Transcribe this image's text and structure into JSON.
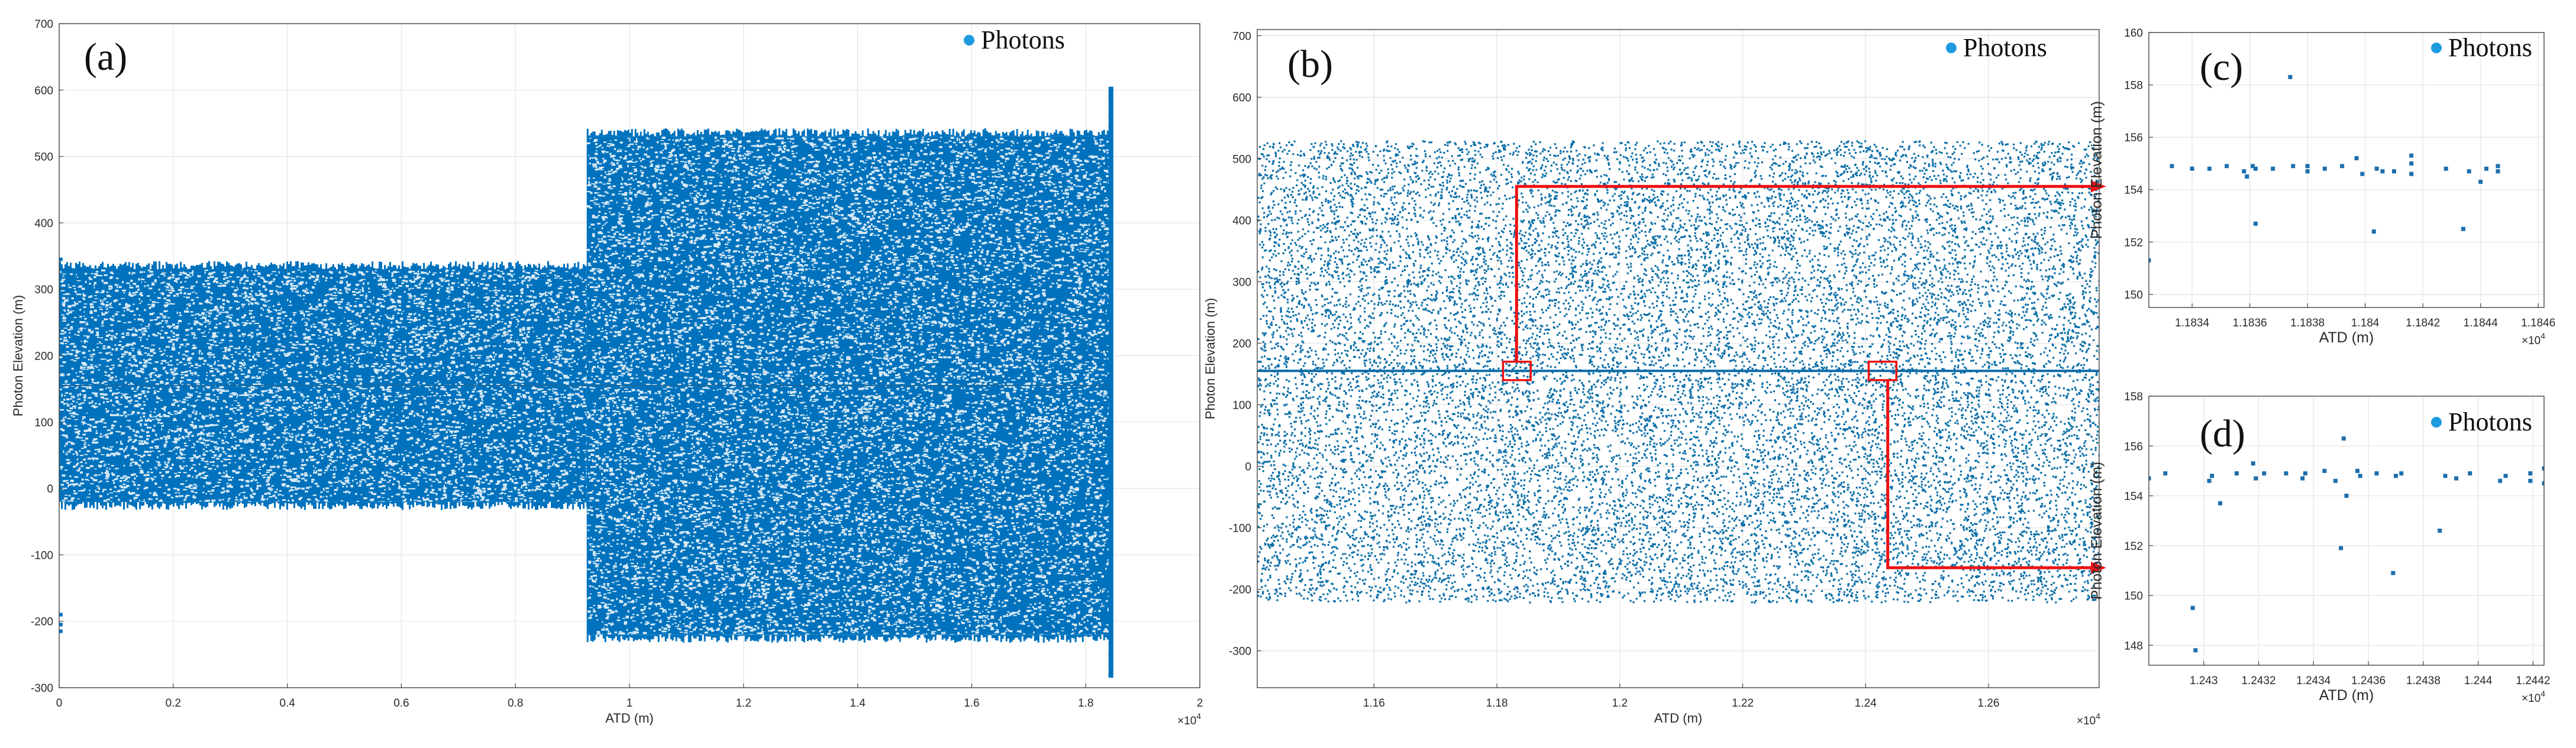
{
  "chart_data": [
    {
      "id": "a",
      "type": "scatter",
      "panel_label": "(a)",
      "legend": "Photons",
      "legend_position": "top-right",
      "xlabel": "ATD (m)",
      "ylabel": "Photon Elevation (m)",
      "x_exponent": "×10",
      "x_exponent_power": "4",
      "xlim": [
        0,
        2
      ],
      "ylim": [
        -300,
        700
      ],
      "grid": true,
      "xticks": [
        0,
        0.2,
        0.4,
        0.6,
        0.8,
        1,
        1.2,
        1.4,
        1.6,
        1.8,
        2
      ],
      "xtick_labels": [
        "0",
        "0.2",
        "0.4",
        "0.6",
        "0.8",
        "1",
        "1.2",
        "1.4",
        "1.6",
        "1.8",
        "2"
      ],
      "yticks": [
        -300,
        -200,
        -100,
        0,
        100,
        200,
        300,
        400,
        500,
        600,
        700
      ],
      "ytick_labels": [
        "-300",
        "-200",
        "-100",
        "0",
        "100",
        "200",
        "300",
        "400",
        "500",
        "600",
        "700"
      ],
      "point_clouds": [
        {
          "x_range": [
            0,
            0.925
          ],
          "y_range": [
            -20,
            330
          ],
          "density": "very high"
        },
        {
          "x_range": [
            0.925,
            1.845
          ],
          "y_range": [
            -220,
            530
          ],
          "density": "very high"
        }
      ],
      "extra_points": [
        {
          "x": 1.843,
          "y": 590
        },
        {
          "x": 1.843,
          "y": 560
        },
        {
          "x": 1.843,
          "y": 545
        },
        {
          "x": 1.843,
          "y": -250
        },
        {
          "x": 1.843,
          "y": -265
        },
        {
          "x": 1.843,
          "y": -280
        },
        {
          "x": 0.003,
          "y": -190
        },
        {
          "x": 0.003,
          "y": -205
        },
        {
          "x": 0.003,
          "y": -215
        },
        {
          "x": 0.003,
          "y": 345
        },
        {
          "x": 0.003,
          "y": 335
        }
      ],
      "signal_line_y": 155
    },
    {
      "id": "b",
      "type": "scatter",
      "panel_label": "(b)",
      "legend": "Photons",
      "legend_position": "top-right",
      "xlabel": "ATD (m)",
      "ylabel": "Photon Elevation (m)",
      "x_exponent": "×10",
      "x_exponent_power": "4",
      "xlim": [
        1.141,
        1.278
      ],
      "ylim": [
        -360,
        710
      ],
      "grid": true,
      "xticks": [
        1.16,
        1.18,
        1.2,
        1.22,
        1.24,
        1.26
      ],
      "xtick_labels": [
        "1.16",
        "1.18",
        "1.2",
        "1.22",
        "1.24",
        "1.26"
      ],
      "yticks": [
        -300,
        -200,
        -100,
        0,
        100,
        200,
        300,
        400,
        500,
        600,
        700
      ],
      "ytick_labels": [
        "-300",
        "-200",
        "-100",
        "0",
        "100",
        "200",
        "300",
        "400",
        "500",
        "600",
        "700"
      ],
      "point_clouds": [
        {
          "x_range": [
            1.141,
            1.278
          ],
          "y_range": [
            -220,
            530
          ],
          "density": "medium"
        }
      ],
      "signal_line_y": 155,
      "zoom_boxes": [
        {
          "x_range": [
            1.181,
            1.1855
          ],
          "y_range": [
            140,
            170
          ],
          "target": "c"
        },
        {
          "x_range": [
            1.2405,
            1.245
          ],
          "y_range": [
            140,
            170
          ],
          "target": "d"
        }
      ],
      "arrows": [
        {
          "from_box": 1,
          "via": [
            [
              1.1832,
              455
            ]
          ],
          "to": [
            1.278,
            455
          ]
        },
        {
          "from_box": 2,
          "via": [
            [
              1.2436,
              -165
            ]
          ],
          "to": [
            1.278,
            -165
          ]
        }
      ]
    },
    {
      "id": "c",
      "type": "scatter",
      "panel_label": "(c)",
      "legend": "Photons",
      "legend_position": "top-right",
      "xlabel": "ATD (m)",
      "ylabel": "Photon Elevation (m)",
      "x_exponent": "×10",
      "x_exponent_power": "4",
      "xlim": [
        1.18325,
        1.18462
      ],
      "ylim": [
        149.5,
        160
      ],
      "grid": true,
      "xticks": [
        1.1834,
        1.1836,
        1.1838,
        1.184,
        1.1842,
        1.1844,
        1.1846
      ],
      "xtick_labels": [
        "1.1834",
        "1.1836",
        "1.1838",
        "1.184",
        "1.1842",
        "1.1844",
        "1.1846"
      ],
      "yticks": [
        150,
        152,
        154,
        156,
        158,
        160
      ],
      "ytick_labels": [
        "150",
        "152",
        "154",
        "156",
        "158",
        "160"
      ],
      "points": [
        {
          "x": 1.18325,
          "y": 151.3
        },
        {
          "x": 1.18333,
          "y": 154.9
        },
        {
          "x": 1.1834,
          "y": 154.8
        },
        {
          "x": 1.18346,
          "y": 154.8
        },
        {
          "x": 1.18352,
          "y": 154.9
        },
        {
          "x": 1.18358,
          "y": 154.7
        },
        {
          "x": 1.18359,
          "y": 154.5
        },
        {
          "x": 1.18361,
          "y": 154.9
        },
        {
          "x": 1.18362,
          "y": 152.7
        },
        {
          "x": 1.18362,
          "y": 154.8
        },
        {
          "x": 1.18368,
          "y": 154.8
        },
        {
          "x": 1.18374,
          "y": 158.3
        },
        {
          "x": 1.18375,
          "y": 154.9
        },
        {
          "x": 1.1838,
          "y": 154.7
        },
        {
          "x": 1.1838,
          "y": 154.9
        },
        {
          "x": 1.18386,
          "y": 154.8
        },
        {
          "x": 1.18392,
          "y": 154.9
        },
        {
          "x": 1.18397,
          "y": 155.2
        },
        {
          "x": 1.18399,
          "y": 154.6
        },
        {
          "x": 1.18403,
          "y": 152.4
        },
        {
          "x": 1.18404,
          "y": 154.8
        },
        {
          "x": 1.18406,
          "y": 154.7
        },
        {
          "x": 1.1841,
          "y": 154.7
        },
        {
          "x": 1.18416,
          "y": 154.6
        },
        {
          "x": 1.18416,
          "y": 155.0
        },
        {
          "x": 1.18416,
          "y": 155.3
        },
        {
          "x": 1.18428,
          "y": 154.8
        },
        {
          "x": 1.18434,
          "y": 152.5
        },
        {
          "x": 1.18436,
          "y": 154.7
        },
        {
          "x": 1.1844,
          "y": 154.3
        },
        {
          "x": 1.18442,
          "y": 154.8
        },
        {
          "x": 1.18446,
          "y": 154.9
        },
        {
          "x": 1.18446,
          "y": 154.7
        }
      ]
    },
    {
      "id": "d",
      "type": "scatter",
      "panel_label": "(d)",
      "legend": "Photons",
      "legend_position": "top-right",
      "xlabel": "ATD (m)",
      "ylabel": "Photon Elevation (m)",
      "x_exponent": "×10",
      "x_exponent_power": "4",
      "xlim": [
        1.2428,
        1.24424
      ],
      "ylim": [
        147.2,
        158
      ],
      "grid": true,
      "xticks": [
        1.243,
        1.2432,
        1.2434,
        1.2436,
        1.2438,
        1.244,
        1.2442
      ],
      "xtick_labels": [
        "1.243",
        "1.2432",
        "1.2434",
        "1.2436",
        "1.2438",
        "1.244",
        "1.2442"
      ],
      "yticks": [
        148,
        150,
        152,
        154,
        156,
        158
      ],
      "ytick_labels": [
        "148",
        "150",
        "152",
        "154",
        "156",
        "158"
      ],
      "points": [
        {
          "x": 1.2428,
          "y": 154.7
        },
        {
          "x": 1.24286,
          "y": 154.9
        },
        {
          "x": 1.24296,
          "y": 149.5
        },
        {
          "x": 1.24297,
          "y": 147.8
        },
        {
          "x": 1.24302,
          "y": 154.6
        },
        {
          "x": 1.24303,
          "y": 154.8
        },
        {
          "x": 1.24306,
          "y": 153.7
        },
        {
          "x": 1.24312,
          "y": 154.9
        },
        {
          "x": 1.24318,
          "y": 155.3
        },
        {
          "x": 1.24319,
          "y": 154.7
        },
        {
          "x": 1.24322,
          "y": 154.9
        },
        {
          "x": 1.2433,
          "y": 154.9
        },
        {
          "x": 1.24336,
          "y": 154.7
        },
        {
          "x": 1.24337,
          "y": 154.9
        },
        {
          "x": 1.24344,
          "y": 155.0
        },
        {
          "x": 1.24348,
          "y": 154.6
        },
        {
          "x": 1.2435,
          "y": 151.9
        },
        {
          "x": 1.24351,
          "y": 156.3
        },
        {
          "x": 1.24352,
          "y": 154.0
        },
        {
          "x": 1.24356,
          "y": 155.0
        },
        {
          "x": 1.24357,
          "y": 154.8
        },
        {
          "x": 1.24363,
          "y": 154.9
        },
        {
          "x": 1.24369,
          "y": 150.9
        },
        {
          "x": 1.2437,
          "y": 154.8
        },
        {
          "x": 1.24372,
          "y": 154.9
        },
        {
          "x": 1.24386,
          "y": 152.6
        },
        {
          "x": 1.24388,
          "y": 154.8
        },
        {
          "x": 1.24392,
          "y": 154.7
        },
        {
          "x": 1.24397,
          "y": 154.9
        },
        {
          "x": 1.24408,
          "y": 154.6
        },
        {
          "x": 1.2441,
          "y": 154.8
        },
        {
          "x": 1.24419,
          "y": 154.9
        },
        {
          "x": 1.24419,
          "y": 154.6
        },
        {
          "x": 1.24424,
          "y": 154.5
        },
        {
          "x": 1.24424,
          "y": 155.1
        }
      ]
    }
  ],
  "colors": {
    "photon": "#0072BD",
    "legend_marker": "#1e9be0",
    "grid": "#e4e4e4",
    "axis": "#444444",
    "highlight": "#ee1111"
  }
}
